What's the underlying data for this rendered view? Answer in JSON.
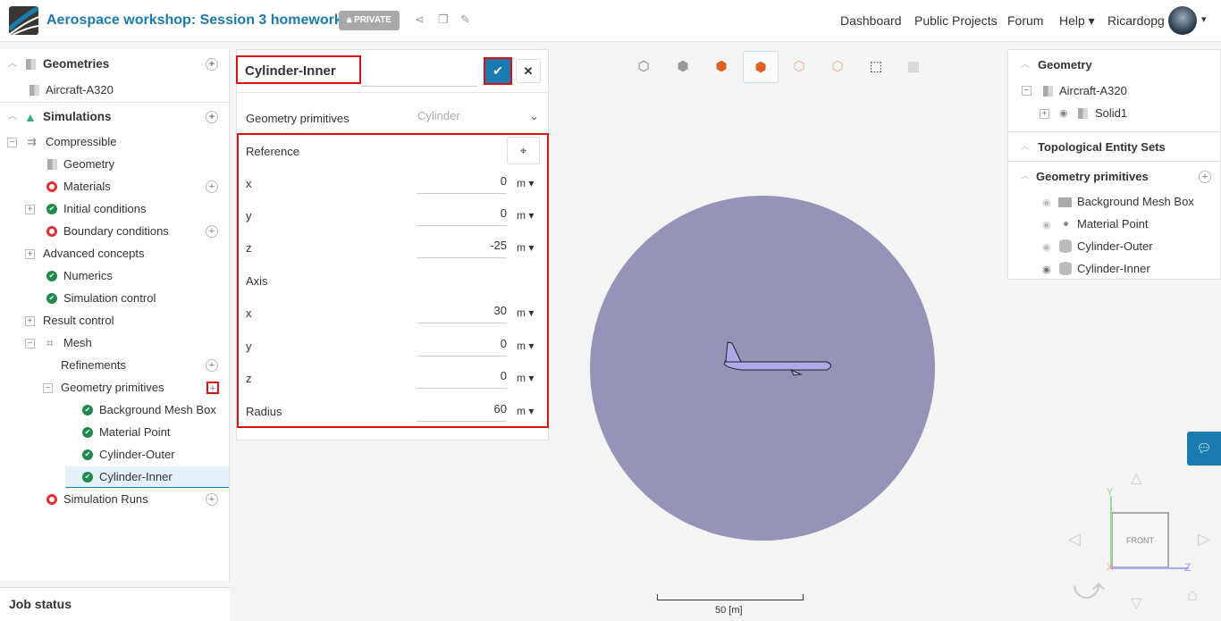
{
  "header": {
    "title": "Aerospace workshop: Session 3 homework",
    "private_label": "PRIVATE",
    "nav": [
      "Dashboard",
      "Public Projects",
      "Forum",
      "Help",
      "Ricardopg"
    ]
  },
  "left_tree": {
    "geometries": "Geometries",
    "aircraft": "Aircraft-A320",
    "simulations": "Simulations",
    "compressible": "Compressible",
    "items": [
      "Geometry",
      "Materials",
      "Initial conditions",
      "Boundary conditions",
      "Advanced concepts",
      "Numerics",
      "Simulation control",
      "Result control",
      "Mesh",
      "Refinements",
      "Geometry primitives",
      "Background Mesh Box",
      "Material Point",
      "Cylinder-Outer",
      "Cylinder-Inner",
      "Simulation Runs"
    ]
  },
  "job_status": "Job status",
  "dialog": {
    "title": "Cylinder-Inner",
    "primitive_label": "Geometry primitives",
    "primitive_value": "Cylinder",
    "reference_label": "Reference",
    "axis_label": "Axis",
    "radius_label": "Radius",
    "reference": [
      {
        "k": "x",
        "v": "0",
        "u": "m"
      },
      {
        "k": "y",
        "v": "0",
        "u": "m"
      },
      {
        "k": "z",
        "v": "-25",
        "u": "m"
      }
    ],
    "axis": [
      {
        "k": "x",
        "v": "30",
        "u": "m"
      },
      {
        "k": "y",
        "v": "0",
        "u": "m"
      },
      {
        "k": "z",
        "v": "0",
        "u": "m"
      }
    ],
    "radius": {
      "v": "60",
      "u": "m"
    }
  },
  "right_panel": {
    "geometry": "Geometry",
    "aircraft": "Aircraft-A320",
    "solid": "Solid1",
    "topo": "Topological Entity Sets",
    "prims": "Geometry primitives",
    "prim_items": [
      "Background Mesh Box",
      "Material Point",
      "Cylinder-Outer",
      "Cylinder-Inner"
    ]
  },
  "viewport": {
    "scale_label": "50 [m]",
    "cube_face": "FRONT",
    "axis_y": "Y",
    "axis_z": "Z",
    "axis_x": "X",
    "cylinder_color": "#9594b8",
    "aircraft_color": "#b0a8e8"
  }
}
